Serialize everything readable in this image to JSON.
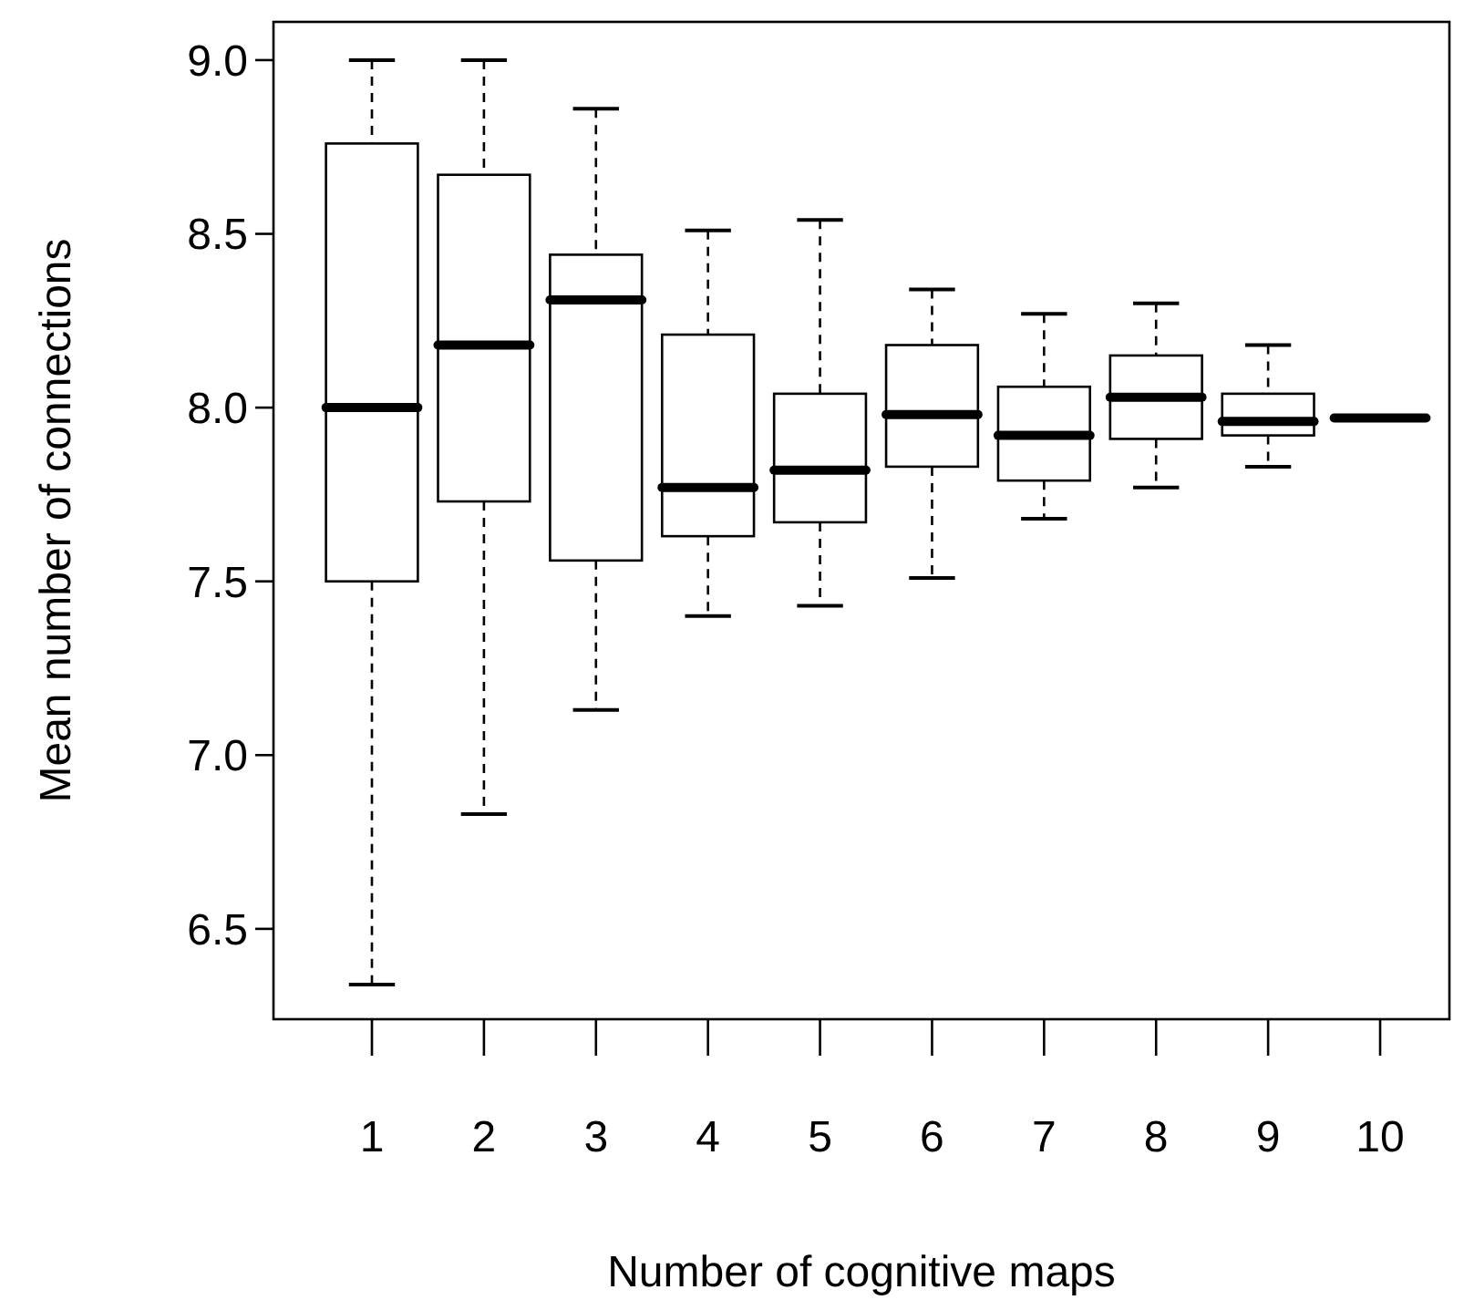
{
  "chart_data": {
    "type": "box",
    "xlabel": "Number of cognitive maps",
    "ylabel": "Mean number of connections",
    "categories": [
      "1",
      "2",
      "3",
      "4",
      "5",
      "6",
      "7",
      "8",
      "9",
      "10"
    ],
    "ylim": [
      6.24,
      9.11
    ],
    "yticks": [
      {
        "value": 6.5,
        "label": "6.5"
      },
      {
        "value": 7,
        "label": "7.0"
      },
      {
        "value": 7.5,
        "label": "7.5"
      },
      {
        "value": 8,
        "label": "8.0"
      },
      {
        "value": 8.5,
        "label": "8.5"
      },
      {
        "value": 9,
        "label": "9.0"
      }
    ],
    "grid": false,
    "boxes": [
      {
        "low": 6.34,
        "q1": 7.5,
        "median": 8.0,
        "q3": 8.76,
        "high": 9.0
      },
      {
        "low": 6.83,
        "q1": 7.73,
        "median": 8.18,
        "q3": 8.67,
        "high": 9.0
      },
      {
        "low": 7.13,
        "q1": 7.56,
        "median": 8.31,
        "q3": 8.44,
        "high": 8.86
      },
      {
        "low": 7.4,
        "q1": 7.63,
        "median": 7.77,
        "q3": 8.21,
        "high": 8.51
      },
      {
        "low": 7.43,
        "q1": 7.67,
        "median": 7.82,
        "q3": 8.04,
        "high": 8.54
      },
      {
        "low": 7.51,
        "q1": 7.83,
        "median": 7.98,
        "q3": 8.18,
        "high": 8.34
      },
      {
        "low": 7.68,
        "q1": 7.79,
        "median": 7.92,
        "q3": 8.06,
        "high": 8.27
      },
      {
        "low": 7.77,
        "q1": 7.91,
        "median": 8.03,
        "q3": 8.15,
        "high": 8.3
      },
      {
        "low": 7.83,
        "q1": 7.92,
        "median": 7.96,
        "q3": 8.04,
        "high": 8.18
      },
      {
        "low": 7.97,
        "q1": 7.97,
        "median": 7.97,
        "q3": 7.97,
        "high": 7.97
      }
    ]
  }
}
